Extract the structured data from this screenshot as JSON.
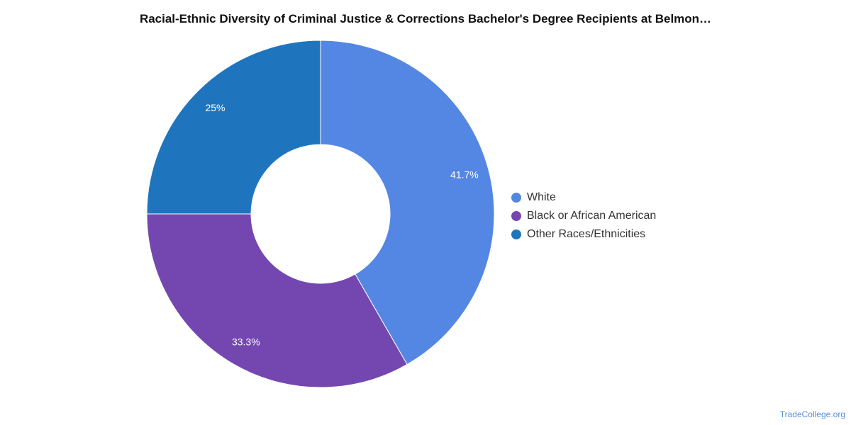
{
  "chart_data": {
    "type": "pie",
    "title": "Racial-Ethnic Diversity of Criminal Justice & Corrections Bachelor's Degree Recipients at Belmon…",
    "slices": [
      {
        "label": "White",
        "value": 41.7,
        "display": "41.7%",
        "color": "#5487e3"
      },
      {
        "label": "Black or African American",
        "value": 33.3,
        "display": "33.3%",
        "color": "#7447b0"
      },
      {
        "label": "Other Races/Ethnicities",
        "value": 25,
        "display": "25%",
        "color": "#1f75bd"
      }
    ],
    "legend": "right",
    "donut": true
  },
  "source_credit": "TradeCollege.org"
}
